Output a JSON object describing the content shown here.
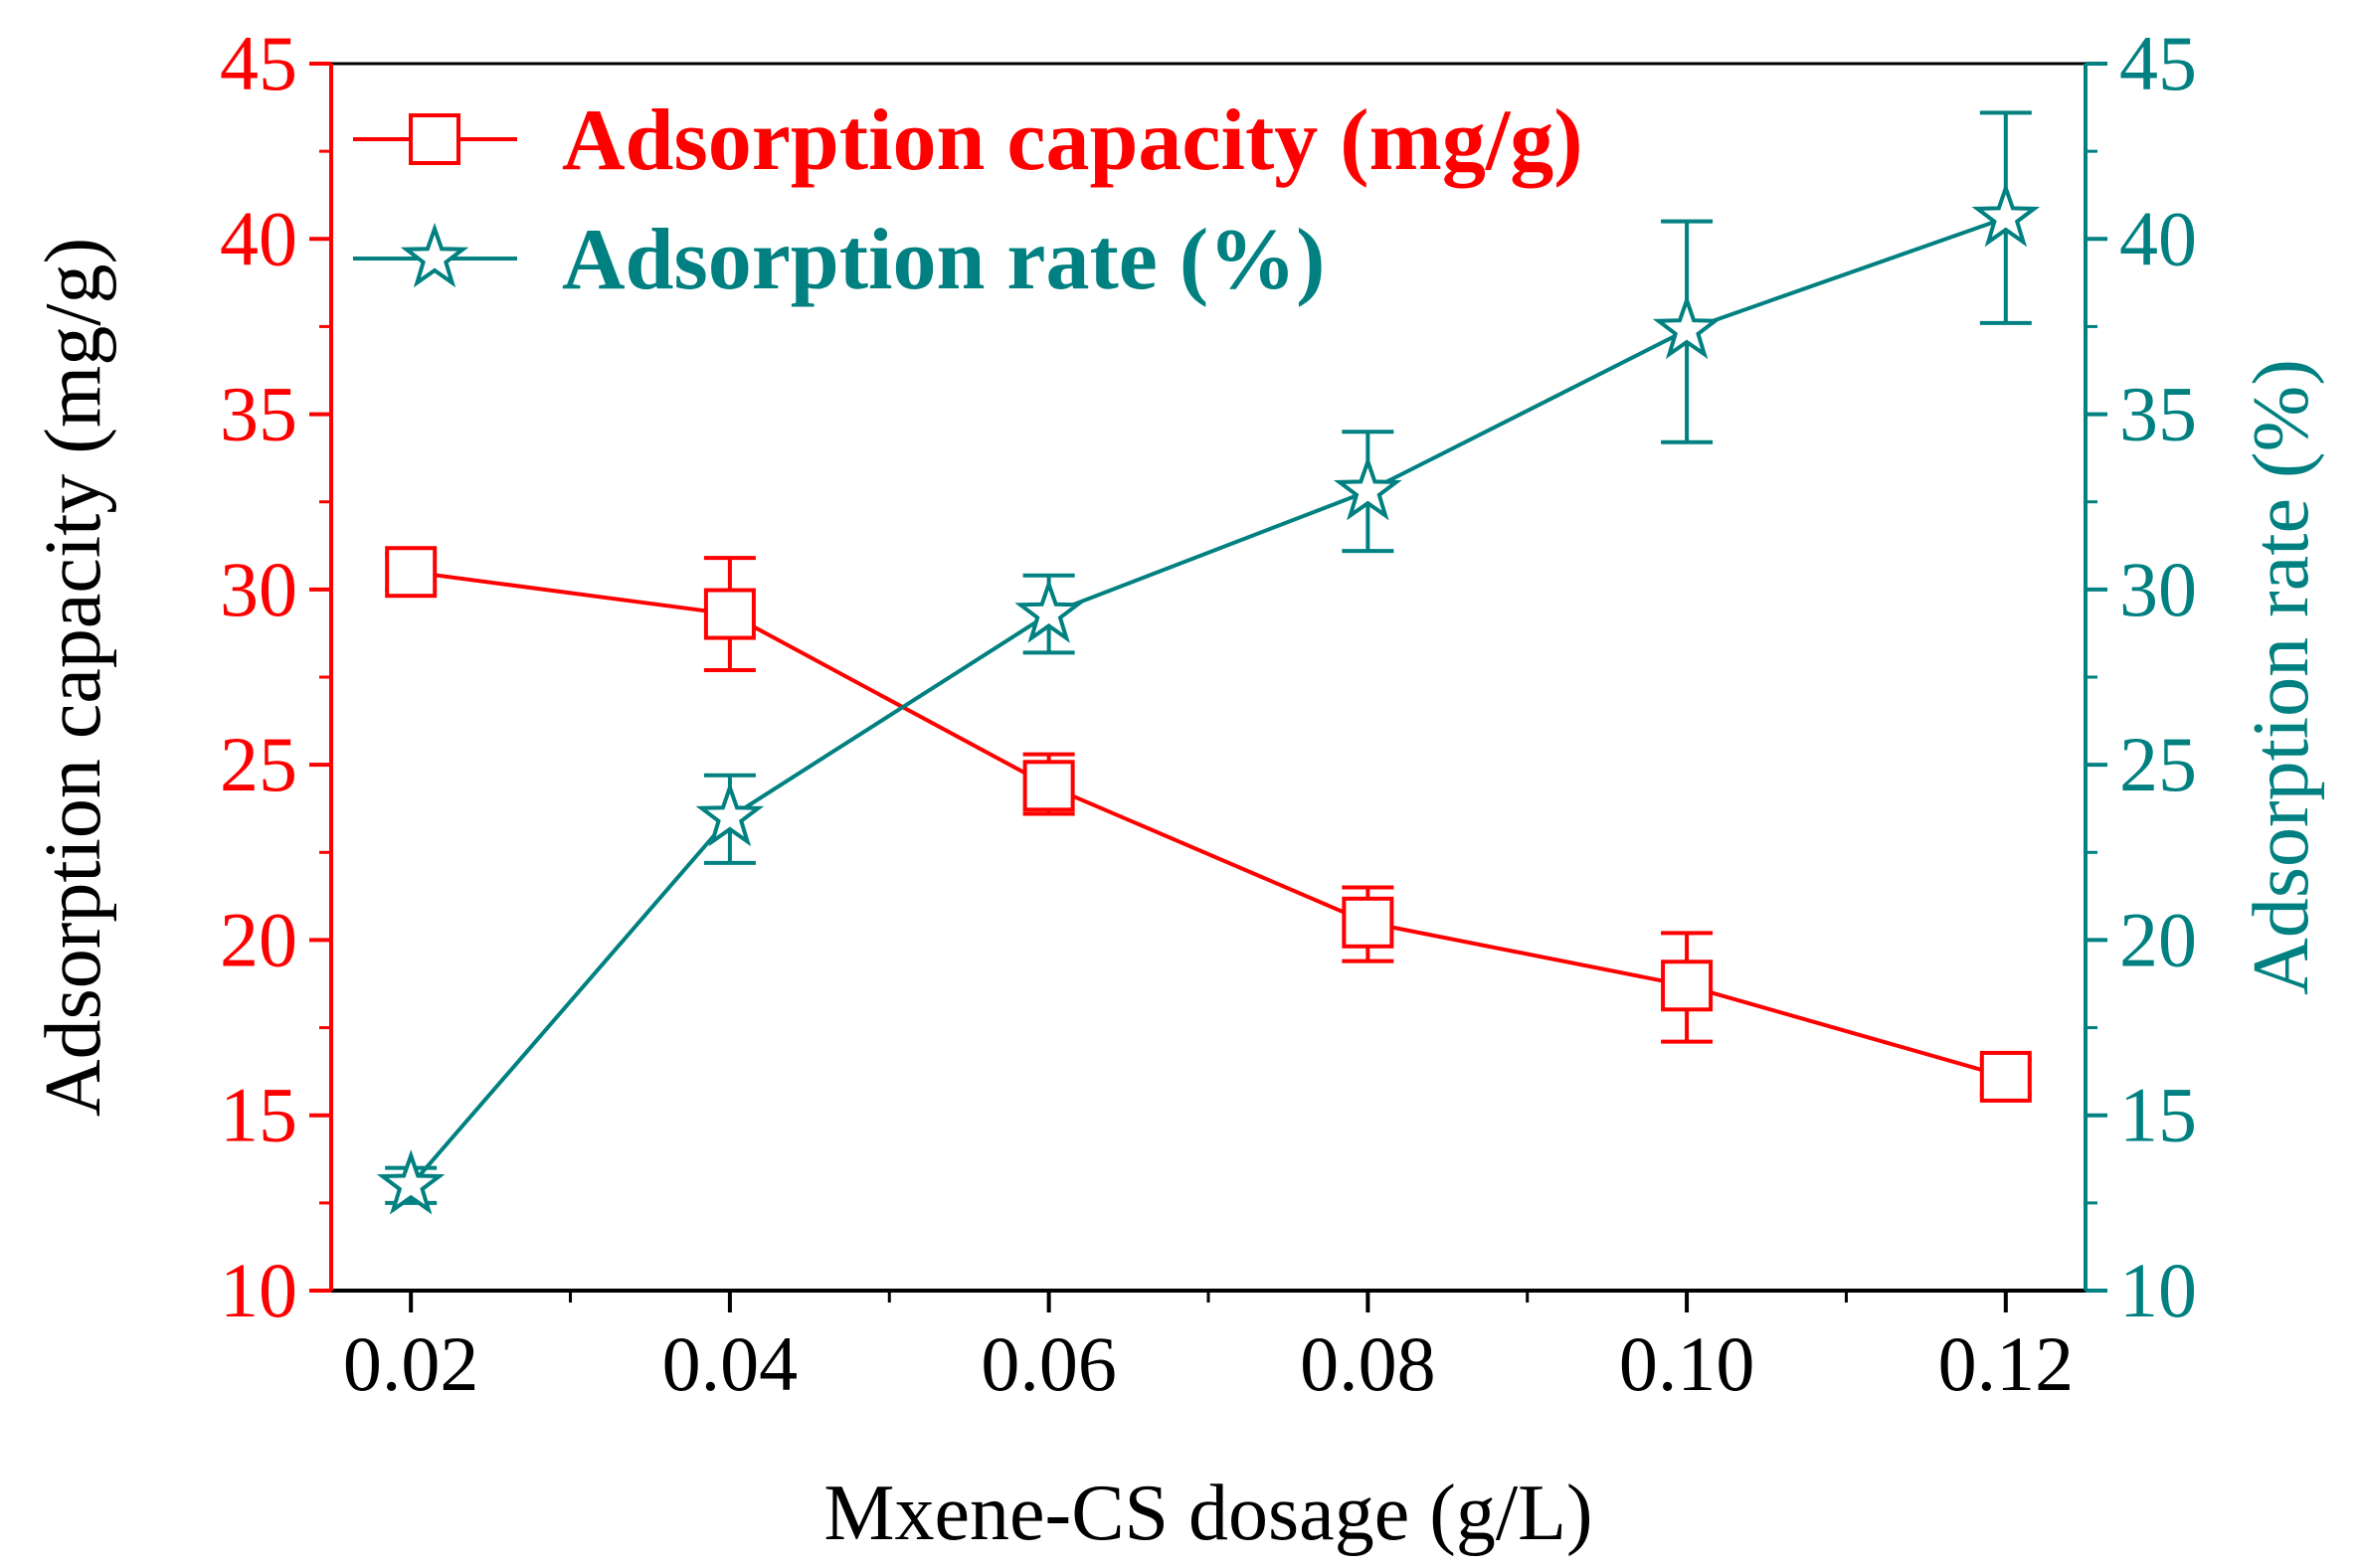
{
  "chart_data": {
    "type": "line",
    "xlabel": "Mxene-CS dosage (g/L)",
    "x": [
      0.02,
      0.04,
      0.06,
      0.08,
      0.1,
      0.12
    ],
    "x_tick_labels": [
      "0.02",
      "0.04",
      "0.06",
      "0.08",
      "0.10",
      "0.12"
    ],
    "xlim": [
      0.015,
      0.125
    ],
    "y_left": {
      "label": "Adsorption capacity (mg/g)",
      "ylim": [
        10,
        45
      ],
      "ticks": [
        10,
        15,
        20,
        25,
        30,
        35,
        40,
        45
      ],
      "color": "#ff0000"
    },
    "y_right": {
      "label": "Adsorption rate (%)",
      "ylim": [
        10,
        45
      ],
      "ticks": [
        10,
        15,
        20,
        25,
        30,
        35,
        40,
        45
      ],
      "color": "#008080"
    },
    "series": [
      {
        "name": "Adsorption capacity (mg/g)",
        "axis": "left",
        "marker": "square",
        "color": "#ff0000",
        "values": [
          30.5,
          29.3,
          24.4,
          20.5,
          18.7,
          16.1
        ],
        "error_low": [
          30.0,
          27.7,
          23.6,
          19.4,
          17.1,
          15.6
        ],
        "error_high": [
          31.0,
          30.9,
          25.3,
          21.5,
          20.2,
          16.6
        ]
      },
      {
        "name": "Adsorption rate (%)",
        "axis": "right",
        "marker": "star",
        "color": "#008080",
        "values": [
          13.0,
          23.5,
          29.3,
          32.8,
          37.4,
          40.6
        ],
        "error_low": [
          12.5,
          22.2,
          28.2,
          31.1,
          34.2,
          37.6
        ],
        "error_high": [
          13.5,
          24.7,
          30.4,
          34.5,
          40.5,
          43.6
        ]
      }
    ],
    "legend": {
      "placement": "top-left",
      "entries": [
        "Adsorption capacity (mg/g)",
        "Adsorption rate (%)"
      ]
    }
  }
}
